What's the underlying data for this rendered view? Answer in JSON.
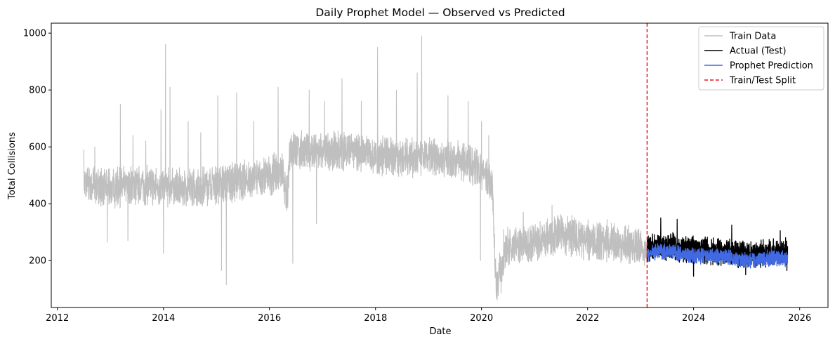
{
  "chart_data": {
    "type": "line",
    "title": "Daily Prophet Model — Observed vs Predicted",
    "xlabel": "Date",
    "ylabel": "Total Collisions",
    "x_ticks": [
      "2012",
      "2014",
      "2016",
      "2018",
      "2020",
      "2022",
      "2024",
      "2026"
    ],
    "y_ticks": [
      "200",
      "400",
      "600",
      "800",
      "1000"
    ],
    "xlim": [
      "2011-11-20",
      "2026-07-15"
    ],
    "ylim": [
      35,
      1035
    ],
    "grid": false,
    "legend_position": "top-right",
    "split_date": "2023-02-15",
    "series": [
      {
        "name": "Train Data",
        "color": "#bfbfbf",
        "style": "solid",
        "noise": 55,
        "points": [
          [
            "2012-07-01",
            470
          ],
          [
            "2013-01-01",
            455
          ],
          [
            "2013-07-01",
            465
          ],
          [
            "2014-01-01",
            460
          ],
          [
            "2014-07-01",
            455
          ],
          [
            "2015-01-01",
            470
          ],
          [
            "2015-07-01",
            480
          ],
          [
            "2016-01-01",
            500
          ],
          [
            "2016-03-25",
            520
          ],
          [
            "2016-05-01",
            410
          ],
          [
            "2016-05-20",
            590
          ],
          [
            "2017-01-01",
            580
          ],
          [
            "2017-07-01",
            590
          ],
          [
            "2018-01-01",
            570
          ],
          [
            "2018-07-01",
            565
          ],
          [
            "2019-01-01",
            560
          ],
          [
            "2019-07-01",
            560
          ],
          [
            "2020-01-01",
            520
          ],
          [
            "2020-03-15",
            470
          ],
          [
            "2020-04-10",
            115
          ],
          [
            "2020-07-01",
            250
          ],
          [
            "2021-01-01",
            265
          ],
          [
            "2021-07-01",
            295
          ],
          [
            "2022-01-01",
            270
          ],
          [
            "2022-07-01",
            260
          ],
          [
            "2023-02-15",
            240
          ]
        ],
        "spikes": [
          [
            "2012-07-01",
            590
          ],
          [
            "2012-09-15",
            600
          ],
          [
            "2013-03-10",
            750
          ],
          [
            "2013-06-05",
            640
          ],
          [
            "2013-09-01",
            620
          ],
          [
            "2013-12-15",
            730
          ],
          [
            "2014-01-15",
            960
          ],
          [
            "2014-02-15",
            810
          ],
          [
            "2014-01-01",
            225
          ],
          [
            "2014-06-20",
            690
          ],
          [
            "2014-09-15",
            650
          ],
          [
            "2015-01-10",
            780
          ],
          [
            "2015-02-05",
            165
          ],
          [
            "2015-03-10",
            115
          ],
          [
            "2015-05-20",
            790
          ],
          [
            "2015-09-15",
            690
          ],
          [
            "2016-03-01",
            810
          ],
          [
            "2016-06-01",
            640
          ],
          [
            "2016-10-01",
            800
          ],
          [
            "2017-01-15",
            760
          ],
          [
            "2017-05-15",
            840
          ],
          [
            "2017-09-25",
            760
          ],
          [
            "2018-01-15",
            950
          ],
          [
            "2018-05-25",
            800
          ],
          [
            "2018-10-15",
            860
          ],
          [
            "2018-11-15",
            990
          ],
          [
            "2019-05-15",
            780
          ],
          [
            "2019-10-01",
            760
          ],
          [
            "2020-01-01",
            690
          ],
          [
            "2020-06-01",
            310
          ],
          [
            "2020-10-15",
            370
          ],
          [
            "2021-05-01",
            395
          ],
          [
            "2021-09-15",
            360
          ],
          [
            "2022-05-15",
            345
          ],
          [
            "2022-09-15",
            320
          ],
          [
            "2016-06-10",
            190
          ],
          [
            "2016-11-20",
            330
          ],
          [
            "2013-05-01",
            270
          ],
          [
            "2012-12-10",
            265
          ],
          [
            "2020-04-20",
            90
          ],
          [
            "2020-05-15",
            85
          ],
          [
            "2019-12-25",
            200
          ],
          [
            "2020-02-20",
            640
          ]
        ]
      },
      {
        "name": "Actual (Test)",
        "color": "#000000",
        "style": "solid",
        "noise": 38,
        "points": [
          [
            "2023-02-15",
            240
          ],
          [
            "2023-07-01",
            250
          ],
          [
            "2024-01-01",
            240
          ],
          [
            "2024-07-01",
            230
          ],
          [
            "2025-01-01",
            220
          ],
          [
            "2025-07-01",
            230
          ],
          [
            "2025-10-10",
            230
          ]
        ],
        "spikes": [
          [
            "2023-05-20",
            350
          ],
          [
            "2023-09-10",
            345
          ],
          [
            "2024-09-20",
            325
          ],
          [
            "2025-08-20",
            305
          ],
          [
            "2024-01-01",
            145
          ],
          [
            "2024-12-25",
            150
          ],
          [
            "2025-10-05",
            165
          ]
        ]
      },
      {
        "name": "Prophet Prediction",
        "color": "#4169e1",
        "style": "solid",
        "noise": 22,
        "points": [
          [
            "2023-02-15",
            225
          ],
          [
            "2023-07-01",
            235
          ],
          [
            "2024-01-01",
            215
          ],
          [
            "2024-07-01",
            215
          ],
          [
            "2025-01-01",
            200
          ],
          [
            "2025-07-01",
            210
          ],
          [
            "2025-10-10",
            205
          ]
        ],
        "spikes": []
      }
    ],
    "split_label": "Train/Test Split",
    "split_color": "#e41a1c"
  }
}
